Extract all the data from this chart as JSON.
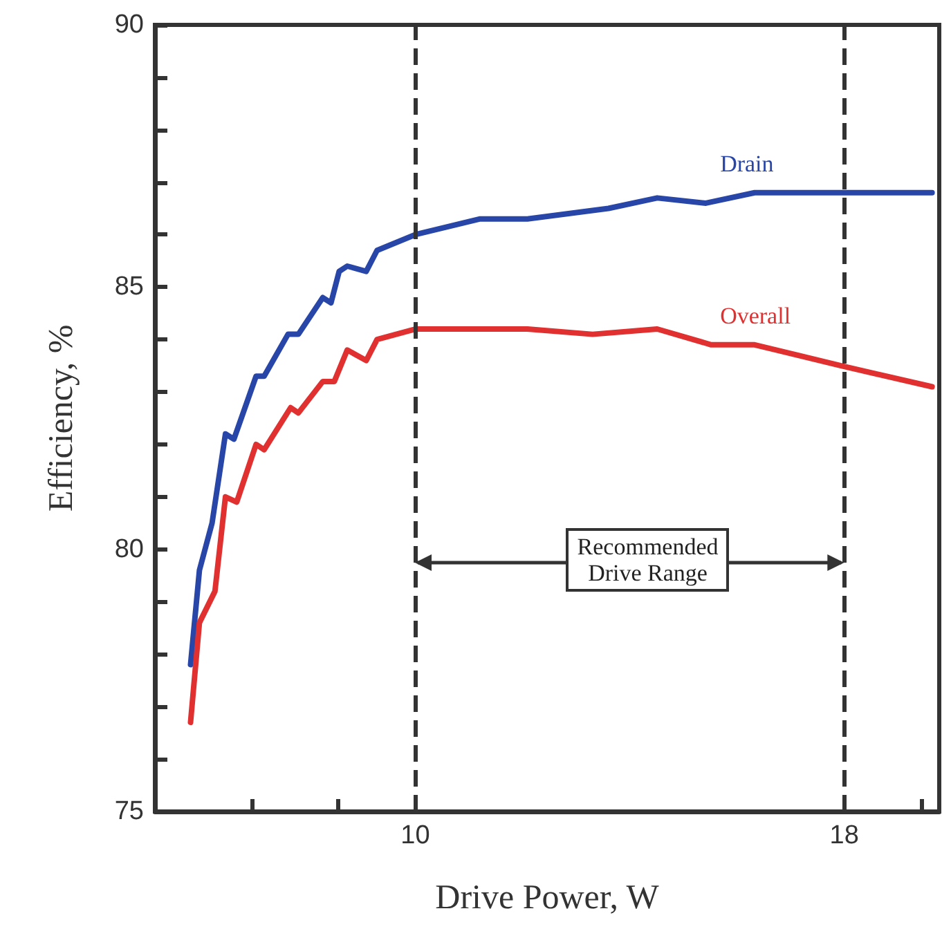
{
  "chart_data": {
    "type": "line",
    "xlabel": "Drive Power, W",
    "ylabel": "Efficiency, %",
    "log": "x",
    "xlim": [
      7,
      20.5
    ],
    "xticks": [
      {
        "value": 8,
        "label": null
      },
      {
        "value": 9,
        "label": null
      },
      10,
      18,
      {
        "value": 20,
        "label": null
      }
    ],
    "ylim": [
      75,
      90
    ],
    "yticks": [
      75,
      {
        "value": 76,
        "label": null
      },
      {
        "value": 77,
        "label": null
      },
      {
        "value": 78,
        "label": null
      },
      {
        "value": 79,
        "label": null
      },
      80,
      {
        "value": 81,
        "label": null
      },
      {
        "value": 82,
        "label": null
      },
      {
        "value": 83,
        "label": null
      },
      {
        "value": 84,
        "label": null
      },
      85,
      {
        "value": 86,
        "label": null
      },
      {
        "value": 87,
        "label": null
      },
      {
        "value": 88,
        "label": null
      },
      {
        "value": 89,
        "label": null
      },
      90
    ],
    "grid": false,
    "legend": false,
    "marker": "none",
    "line_style": "solid",
    "series": [
      {
        "name": "Drain",
        "color": "#2846a8",
        "x": [
          7.35,
          7.44,
          7.57,
          7.71,
          7.8,
          8.04,
          8.13,
          8.4,
          8.52,
          8.81,
          8.91,
          9.01,
          9.11,
          9.35,
          9.49,
          10.0,
          10.93,
          11.66,
          13.03,
          13.93,
          14.89,
          15.92,
          17.65,
          20.3
        ],
        "values": [
          77.8,
          79.6,
          80.5,
          82.2,
          82.1,
          83.3,
          83.3,
          84.1,
          84.1,
          84.8,
          84.7,
          85.3,
          85.4,
          85.3,
          85.7,
          86.0,
          86.3,
          86.3,
          86.5,
          86.7,
          86.6,
          86.8,
          86.8,
          86.8
        ]
      },
      {
        "name": "Overall",
        "color": "#e03030",
        "x": [
          7.35,
          7.44,
          7.6,
          7.71,
          7.83,
          8.04,
          8.13,
          8.43,
          8.52,
          8.81,
          8.95,
          9.11,
          9.35,
          9.49,
          10.0,
          10.93,
          11.66,
          12.75,
          13.93,
          15.0,
          15.92,
          17.92,
          20.3
        ],
        "values": [
          76.7,
          78.6,
          79.2,
          81.0,
          80.9,
          82.0,
          81.9,
          82.7,
          82.6,
          83.2,
          83.2,
          83.8,
          83.6,
          84.0,
          84.2,
          84.2,
          84.2,
          84.1,
          84.2,
          83.9,
          83.9,
          83.5,
          83.1
        ]
      }
    ],
    "ref_lines": [
      {
        "axis": "x",
        "value": 10,
        "label": null,
        "color": "#333333",
        "line_style": "dashed"
      },
      {
        "axis": "x",
        "value": 18,
        "label": null,
        "color": "#333333",
        "line_style": "dashed"
      }
    ],
    "annotations": [
      "Recommended\nDrive Range"
    ]
  }
}
